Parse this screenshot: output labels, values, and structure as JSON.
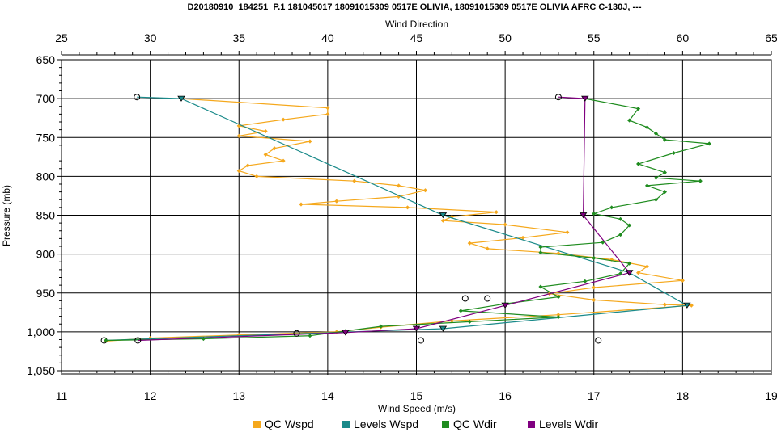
{
  "chart_data": {
    "type": "line",
    "title": "D20180910_184251_P.1 181045017 18091015309 0517E OLIVIA, 18091015309 0517E OLIVIA AFRC C-130J, ---",
    "xlabel": "Wind Speed (m/s)",
    "x2label": "Wind Direction",
    "ylabel": "Pressure (mb)",
    "xlim": [
      11,
      19
    ],
    "x2lim": [
      25,
      65
    ],
    "ylim": [
      650,
      1050
    ],
    "y_inverted": true,
    "grid": true,
    "legend_position": "bottom",
    "x_ticks": [
      "11",
      "12",
      "13",
      "14",
      "15",
      "16",
      "17",
      "18",
      "19"
    ],
    "x2_ticks": [
      "25",
      "30",
      "35",
      "40",
      "45",
      "50",
      "55",
      "60",
      "65"
    ],
    "y_ticks": [
      "650",
      "700",
      "750",
      "800",
      "850",
      "900",
      "950",
      "1,000",
      "1,050"
    ],
    "colors": {
      "qc_wspd": "#f5a81c",
      "levels_wspd": "#1a8a8a",
      "qc_wdir": "#1f8c1f",
      "levels_wdir": "#800080"
    },
    "series": [
      {
        "name": "QC Wspd",
        "axis": "wind_speed",
        "points": [
          [
            12.35,
            700
          ],
          [
            14.0,
            712
          ],
          [
            14.0,
            720
          ],
          [
            13.5,
            727
          ],
          [
            13.0,
            735
          ],
          [
            13.3,
            742
          ],
          [
            13.0,
            748
          ],
          [
            13.8,
            755
          ],
          [
            13.4,
            764
          ],
          [
            13.3,
            772
          ],
          [
            13.5,
            780
          ],
          [
            13.1,
            786
          ],
          [
            13.0,
            793
          ],
          [
            13.2,
            800
          ],
          [
            14.3,
            806
          ],
          [
            14.8,
            812
          ],
          [
            15.1,
            818
          ],
          [
            14.8,
            826
          ],
          [
            14.1,
            832
          ],
          [
            13.7,
            836
          ],
          [
            14.9,
            840
          ],
          [
            15.9,
            846
          ],
          [
            15.4,
            852
          ],
          [
            15.3,
            857
          ],
          [
            16.0,
            862
          ],
          [
            16.7,
            872
          ],
          [
            16.2,
            879
          ],
          [
            15.6,
            886
          ],
          [
            15.8,
            893
          ],
          [
            16.6,
            899
          ],
          [
            17.2,
            907
          ],
          [
            17.6,
            916
          ],
          [
            17.5,
            924
          ],
          [
            18.0,
            934
          ],
          [
            17.0,
            943
          ],
          [
            16.5,
            951
          ],
          [
            17.0,
            959
          ],
          [
            17.8,
            965
          ],
          [
            18.1,
            966
          ],
          [
            16.6,
            978
          ],
          [
            15.4,
            986
          ],
          [
            14.6,
            994
          ],
          [
            14.1,
            1000
          ],
          [
            13.0,
            1004
          ],
          [
            12.0,
            1008
          ],
          [
            11.5,
            1012
          ]
        ]
      },
      {
        "name": "Levels Wspd",
        "axis": "wind_speed",
        "points": [
          [
            11.85,
            698
          ],
          [
            12.35,
            700
          ],
          [
            15.3,
            850
          ],
          [
            17.4,
            924
          ],
          [
            18.05,
            966
          ],
          [
            15.3,
            996
          ],
          [
            11.48,
            1011
          ]
        ]
      },
      {
        "name": "QC Wdir",
        "axis": "wind_direction",
        "points": [
          [
            54.5,
            700
          ],
          [
            57.5,
            713
          ],
          [
            57.0,
            728
          ],
          [
            58.0,
            737
          ],
          [
            58.5,
            745
          ],
          [
            59.0,
            753
          ],
          [
            61.5,
            758
          ],
          [
            59.5,
            770
          ],
          [
            57.5,
            784
          ],
          [
            59.0,
            795
          ],
          [
            58.5,
            802
          ],
          [
            61.0,
            806
          ],
          [
            58.0,
            812
          ],
          [
            59.0,
            820
          ],
          [
            58.5,
            830
          ],
          [
            56.0,
            840
          ],
          [
            55.0,
            848
          ],
          [
            56.5,
            855
          ],
          [
            57.0,
            863
          ],
          [
            56.5,
            875
          ],
          [
            55.5,
            885
          ],
          [
            52.0,
            891
          ],
          [
            52.0,
            898
          ],
          [
            55.0,
            905
          ],
          [
            57.0,
            912
          ],
          [
            56.5,
            925
          ],
          [
            54.5,
            935
          ],
          [
            52.0,
            942
          ],
          [
            53.0,
            955
          ],
          [
            50.0,
            964
          ],
          [
            47.5,
            973
          ],
          [
            53.0,
            981
          ],
          [
            48.0,
            987
          ],
          [
            43.0,
            993
          ],
          [
            41.0,
            999
          ],
          [
            39.0,
            1005
          ],
          [
            33.0,
            1009
          ],
          [
            27.5,
            1011
          ]
        ]
      },
      {
        "name": "Levels Wdir",
        "axis": "wind_direction",
        "points": [
          [
            53.0,
            698
          ],
          [
            54.5,
            700
          ],
          [
            54.4,
            850
          ],
          [
            57.0,
            924
          ],
          [
            50.0,
            966
          ],
          [
            45.0,
            996
          ],
          [
            41.0,
            1001
          ],
          [
            29.3,
            1011
          ]
        ]
      }
    ],
    "stray_markers": {
      "axis": "wind_speed",
      "points": [
        [
          15.55,
          957
        ],
        [
          15.8,
          957
        ],
        [
          13.65,
          1002
        ],
        [
          15.05,
          1011
        ],
        [
          17.05,
          1011
        ]
      ]
    },
    "legend": [
      "QC Wspd",
      "Levels Wspd",
      "QC Wdir",
      "Levels Wdir"
    ]
  }
}
